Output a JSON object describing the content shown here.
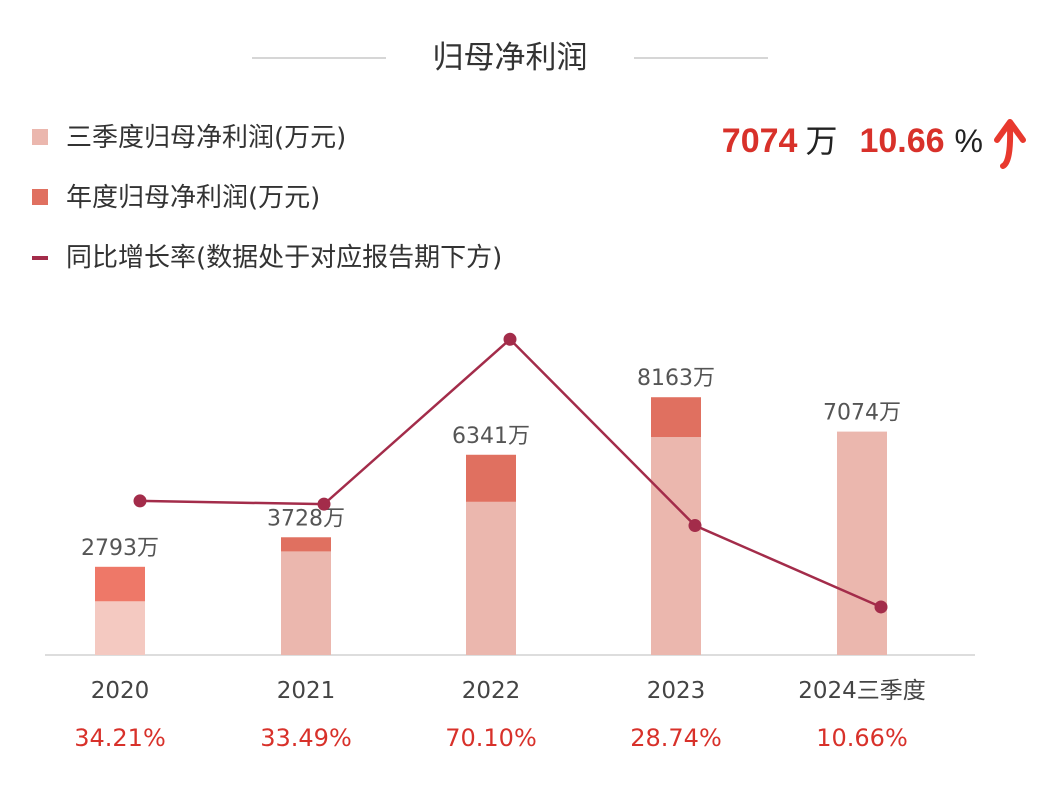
{
  "title": "归母净利润",
  "legend": {
    "items": [
      {
        "label": "三季度归母净利润(万元)",
        "color": "#ebb7ae"
      },
      {
        "label": "年度归母净利润(万元)",
        "color": "#e07060"
      },
      {
        "label": "同比增长率(数据处于对应报告期下方)",
        "color": "#a32c4a"
      }
    ]
  },
  "summary": {
    "value": "7074",
    "value_unit": "万",
    "rate": "10.66",
    "rate_unit": "%"
  },
  "colors": {
    "q3_bar": "#ebb7ae",
    "q3_bar_2020": "#f4c9c1",
    "annual_bar": "#e07060",
    "annual_bar_2020": "#ee7868",
    "line": "#a32c4a",
    "rate_text": "#d8312a",
    "arrow": "#e8392e"
  },
  "chart_data": {
    "type": "bar",
    "categories": [
      "2020",
      "2021",
      "2022",
      "2023",
      "2024三季度"
    ],
    "series": [
      {
        "name": "三季度归母净利润(万元)",
        "values": [
          1700,
          3280,
          4850,
          6900,
          7074
        ]
      },
      {
        "name": "年度归母净利润(万元)",
        "values": [
          2793,
          3728,
          6341,
          8163,
          null
        ]
      }
    ],
    "bar_labels": [
      "2793万",
      "3728万",
      "6341万",
      "8163万",
      "7074万"
    ],
    "line_series": {
      "name": "同比增长率(数据处于对应报告期下方)",
      "values": [
        34.21,
        33.49,
        70.1,
        28.74,
        10.66
      ]
    },
    "rate_labels": [
      "34.21%",
      "33.49%",
      "70.10%",
      "28.74%",
      "10.66%"
    ],
    "ylim": [
      0,
      9500
    ],
    "line_ylim": [
      -10,
      85
    ],
    "grid": false,
    "legend_position": "top-left"
  }
}
